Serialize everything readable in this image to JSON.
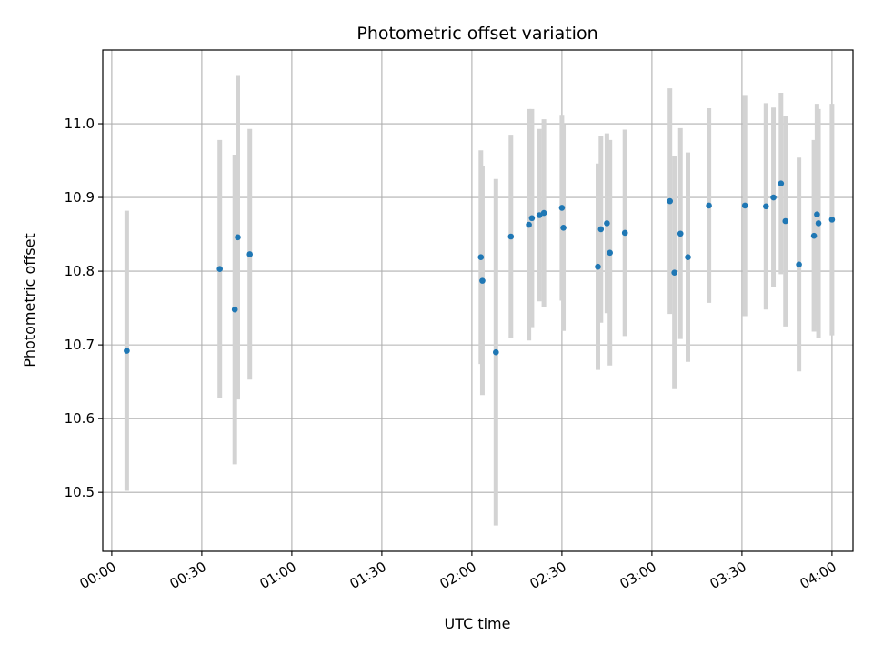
{
  "chart_data": {
    "type": "scatter",
    "title": "Photometric offset variation",
    "xlabel": "UTC time",
    "ylabel": "Photometric offset",
    "xlim_minutes": [
      -3,
      247
    ],
    "ylim": [
      10.42,
      11.1
    ],
    "grid": true,
    "x_ticks_minutes": [
      0,
      30,
      60,
      90,
      120,
      150,
      180,
      210,
      240
    ],
    "x_tick_labels": [
      "00:00",
      "00:30",
      "01:00",
      "01:30",
      "02:00",
      "02:30",
      "03:00",
      "03:30",
      "04:00"
    ],
    "y_ticks": [
      10.5,
      10.6,
      10.7,
      10.8,
      10.9,
      11.0
    ],
    "y_tick_labels": [
      "10.5",
      "10.6",
      "10.7",
      "10.8",
      "10.9",
      "11.0"
    ],
    "colors": {
      "points": "#1f77b4",
      "errorbars": "#d3d3d3",
      "grid": "#b0b0b0"
    },
    "series": [
      {
        "time_minutes": [
          5,
          36,
          41,
          42,
          46,
          123,
          123.5,
          128,
          133,
          139,
          140,
          142.5,
          144,
          150,
          150.5,
          162,
          163,
          165,
          166,
          171,
          186,
          187.5,
          189.5,
          192,
          199,
          211,
          218,
          220.5,
          223,
          224.5,
          229,
          234,
          235,
          235.5,
          240
        ],
        "offset": [
          10.692,
          10.803,
          10.748,
          10.846,
          10.823,
          10.819,
          10.787,
          10.69,
          10.847,
          10.863,
          10.872,
          10.876,
          10.879,
          10.886,
          10.859,
          10.806,
          10.857,
          10.865,
          10.825,
          10.852,
          10.895,
          10.798,
          10.851,
          10.819,
          10.889,
          10.889,
          10.888,
          10.9,
          10.919,
          10.868,
          10.809,
          10.848,
          10.877,
          10.865,
          10.87
        ],
        "error": [
          0.19,
          0.175,
          0.21,
          0.22,
          0.17,
          0.145,
          0.155,
          0.235,
          0.138,
          0.157,
          0.148,
          0.117,
          0.127,
          0.126,
          0.14,
          0.14,
          0.127,
          0.122,
          0.153,
          0.14,
          0.153,
          0.158,
          0.143,
          0.142,
          0.132,
          0.15,
          0.14,
          0.122,
          0.123,
          0.143,
          0.145,
          0.13,
          0.15,
          0.155,
          0.157
        ]
      }
    ]
  }
}
